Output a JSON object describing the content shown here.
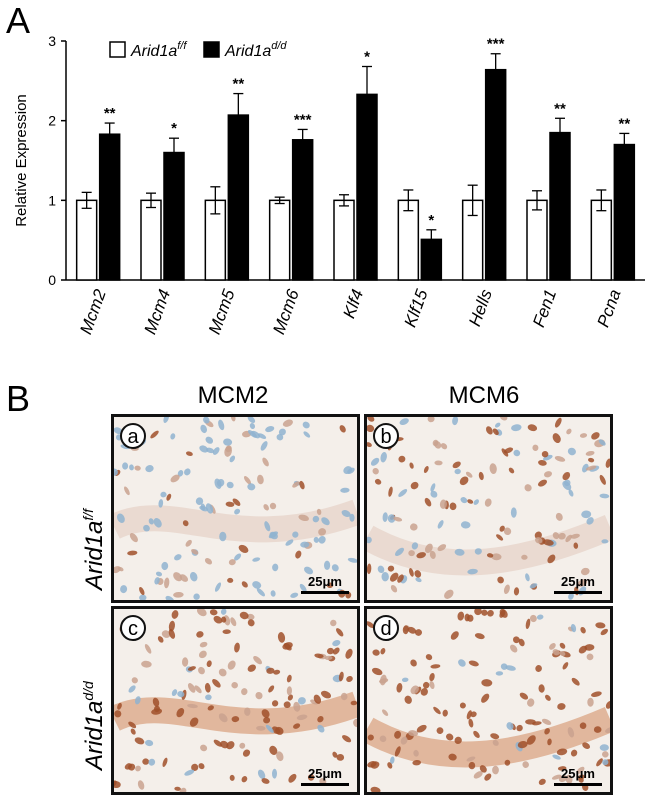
{
  "panel_a": {
    "letter": "A"
  },
  "panel_b": {
    "letter": "B",
    "columns": [
      "MCM2",
      "MCM6"
    ],
    "rows": [
      {
        "gene": "Arid1a",
        "superscript": "f/f"
      },
      {
        "gene": "Arid1a",
        "superscript": "d/d"
      }
    ],
    "images": [
      {
        "label": "a",
        "scale": "25μm",
        "stain": "light"
      },
      {
        "label": "b",
        "scale": "25μm",
        "stain": "medium"
      },
      {
        "label": "c",
        "scale": "25μm",
        "stain": "dark"
      },
      {
        "label": "d",
        "scale": "25μm",
        "stain": "dark"
      }
    ],
    "colors": {
      "hematoxylin": "#8fb3d0",
      "dab_light": "#c9a28f",
      "dab_dark": "#a0502a",
      "background": "#f4efea"
    }
  },
  "chart_data": {
    "type": "bar",
    "ylabel": "Relative Expression",
    "ylim": [
      0,
      3
    ],
    "yticks": [
      "0",
      "1",
      "2",
      "3"
    ],
    "categories": [
      "Mcm2",
      "Mcm4",
      "Mcm5",
      "Mcm6",
      "Klf4",
      "Klf15",
      "Hells",
      "Fen1",
      "Pcna"
    ],
    "series": [
      {
        "name": "Arid1a",
        "superscript": "f/f",
        "color": "#ffffff",
        "values": [
          1.0,
          1.0,
          1.0,
          1.0,
          1.0,
          1.0,
          1.0,
          1.0,
          1.0
        ],
        "errors": [
          0.1,
          0.09,
          0.17,
          0.04,
          0.07,
          0.13,
          0.19,
          0.12,
          0.13
        ]
      },
      {
        "name": "Arid1a",
        "superscript": "d/d",
        "color": "#000000",
        "values": [
          1.83,
          1.6,
          2.07,
          1.76,
          2.33,
          0.51,
          2.64,
          1.85,
          1.7
        ],
        "errors": [
          0.14,
          0.18,
          0.27,
          0.13,
          0.35,
          0.12,
          0.2,
          0.18,
          0.14
        ]
      }
    ],
    "significance": [
      "**",
      "*",
      "**",
      "***",
      "*",
      "*",
      "***",
      "**",
      "**"
    ],
    "legend": "top-left",
    "grid": false
  }
}
